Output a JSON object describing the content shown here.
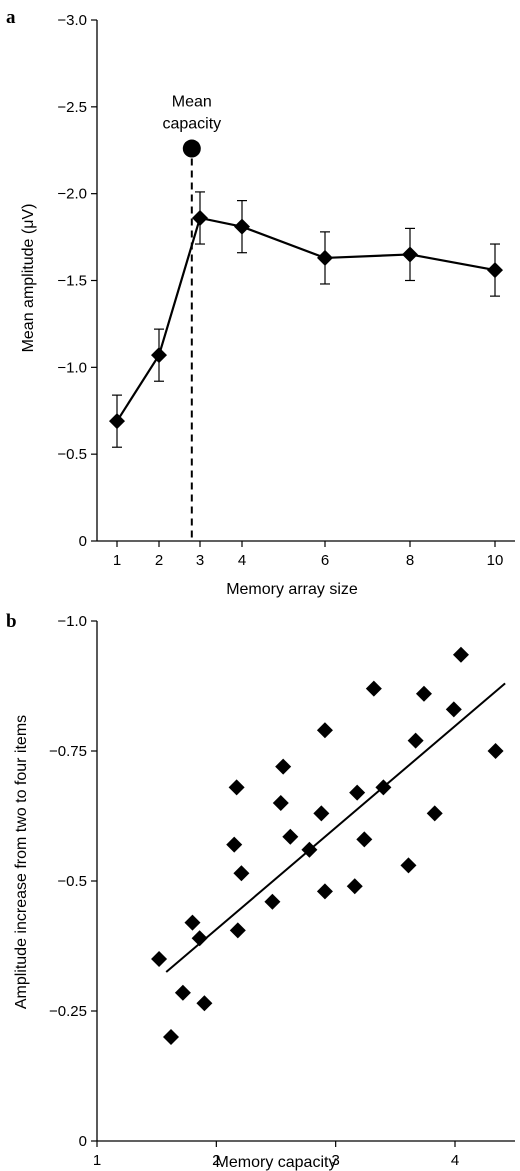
{
  "chart_data": [
    {
      "panel": "a",
      "type": "line",
      "xlabel": "Memory array size",
      "ylabel": "Mean amplitude (μV)",
      "x_tick_labels": [
        "1",
        "2",
        "3",
        "4",
        "6",
        "8",
        "10"
      ],
      "y_ticks": [
        0,
        -0.5,
        -1.0,
        -1.5,
        -2.0,
        -2.5,
        -3.0
      ],
      "y_tick_labels": [
        "0",
        "−0.5",
        "−1.0",
        "−1.5",
        "−2.0",
        "−2.5",
        "−3.0"
      ],
      "ylim": [
        0,
        -3.0
      ],
      "series": [
        {
          "x": [
            1,
            2,
            3,
            4,
            6,
            8,
            10
          ],
          "values": [
            -0.69,
            -1.07,
            -1.86,
            -1.81,
            -1.63,
            -1.65,
            -1.56
          ],
          "error": [
            0.15,
            0.15,
            0.15,
            0.15,
            0.15,
            0.15,
            0.15
          ]
        }
      ],
      "annotation": {
        "lines": [
          "Mean",
          "capacity"
        ],
        "x": 2.8,
        "y": -2.26
      }
    },
    {
      "panel": "b",
      "type": "scatter",
      "xlabel": "Memory capacity",
      "ylabel": "Amplitude increase from two to four items",
      "x_ticks": [
        1,
        2,
        3,
        4
      ],
      "x_tick_labels": [
        "1",
        "2",
        "3",
        "4"
      ],
      "y_ticks": [
        0,
        -0.25,
        -0.5,
        -0.75,
        -1.0
      ],
      "y_tick_labels": [
        "0",
        "−0.25",
        "−0.5",
        "−0.75",
        "−1.0"
      ],
      "xlim": [
        1,
        4.5
      ],
      "ylim": [
        0,
        -1.0
      ],
      "points": [
        [
          1.52,
          -0.35
        ],
        [
          1.62,
          -0.2
        ],
        [
          1.72,
          -0.285
        ],
        [
          1.8,
          -0.42
        ],
        [
          1.86,
          -0.39
        ],
        [
          1.9,
          -0.265
        ],
        [
          2.15,
          -0.57
        ],
        [
          2.17,
          -0.68
        ],
        [
          2.18,
          -0.405
        ],
        [
          2.21,
          -0.515
        ],
        [
          2.47,
          -0.46
        ],
        [
          2.54,
          -0.65
        ],
        [
          2.56,
          -0.72
        ],
        [
          2.62,
          -0.585
        ],
        [
          2.78,
          -0.56
        ],
        [
          2.88,
          -0.63
        ],
        [
          2.91,
          -0.79
        ],
        [
          2.91,
          -0.48
        ],
        [
          3.16,
          -0.49
        ],
        [
          3.18,
          -0.67
        ],
        [
          3.24,
          -0.58
        ],
        [
          3.32,
          -0.87
        ],
        [
          3.4,
          -0.68
        ],
        [
          3.61,
          -0.53
        ],
        [
          3.67,
          -0.77
        ],
        [
          3.74,
          -0.86
        ],
        [
          3.83,
          -0.63
        ],
        [
          3.99,
          -0.83
        ],
        [
          4.05,
          -0.935
        ],
        [
          4.34,
          -0.75
        ]
      ],
      "fit_line": {
        "x": [
          1.58,
          4.42
        ],
        "y": [
          -0.325,
          -0.88
        ]
      }
    }
  ]
}
